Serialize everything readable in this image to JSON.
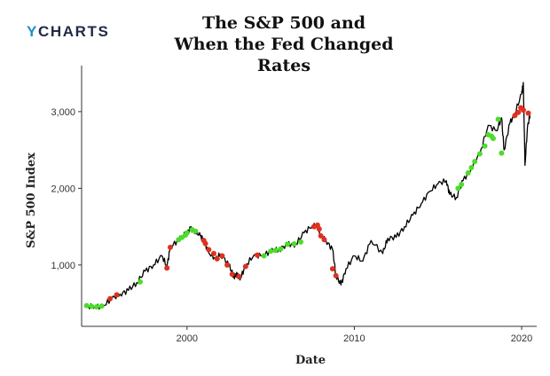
{
  "brand": {
    "logo_prefix": "Y",
    "logo_rest": "CHARTS"
  },
  "chart_data": {
    "type": "line",
    "title": "The S&P 500 and",
    "subtitle": "When the Fed Changed Rates",
    "xlabel": "Date",
    "ylabel": "S&P 500 Index",
    "xlim": [
      1993.7,
      2020.9
    ],
    "ylim": [
      200,
      3600
    ],
    "x_ticks": [
      2000,
      2010,
      2020
    ],
    "x_tick_labels": [
      "2000",
      "2010",
      "2020"
    ],
    "y_ticks": [
      1000,
      2000,
      3000
    ],
    "y_tick_labels": [
      "1,000",
      "2,000",
      "3,000"
    ],
    "grid": false,
    "legend": "none",
    "colors": {
      "line": "#000000",
      "cut": "#4cdc2b",
      "hike": "#e0301e"
    },
    "series": [
      {
        "x": [
          1994.0,
          1994.5,
          1995.0,
          1995.5,
          1996.0,
          1996.5,
          1997.0,
          1997.5,
          1998.0,
          1998.5,
          1998.8,
          1999.0,
          1999.5,
          2000.0,
          2000.2,
          2000.5,
          2000.8,
          2001.0,
          2001.3,
          2001.7,
          2002.0,
          2002.5,
          2002.8,
          2003.0,
          2003.2,
          2003.5,
          2004.0,
          2004.5,
          2005.0,
          2005.5,
          2006.0,
          2006.5,
          2007.0,
          2007.5,
          2007.8,
          2008.0,
          2008.3,
          2008.7,
          2008.9,
          2009.2,
          2009.5,
          2010.0,
          2010.5,
          2011.0,
          2011.7,
          2012.0,
          2012.5,
          2013.0,
          2013.5,
          2014.0,
          2014.5,
          2015.0,
          2015.5,
          2015.7,
          2016.1,
          2016.5,
          2017.0,
          2017.5,
          2018.0,
          2018.5,
          2018.8,
          2018.95,
          2019.3,
          2019.6,
          2020.0,
          2020.1,
          2020.2,
          2020.35,
          2020.5
        ],
        "y": [
          470,
          455,
          470,
          560,
          620,
          670,
          770,
          920,
          1000,
          1120,
          980,
          1230,
          1330,
          1420,
          1470,
          1440,
          1380,
          1320,
          1160,
          1080,
          1140,
          1000,
          850,
          870,
          830,
          990,
          1130,
          1120,
          1180,
          1200,
          1270,
          1270,
          1420,
          1520,
          1500,
          1370,
          1320,
          1200,
          870,
          740,
          950,
          1120,
          1050,
          1320,
          1150,
          1350,
          1360,
          1500,
          1650,
          1800,
          1960,
          2060,
          2100,
          1920,
          1880,
          2100,
          2270,
          2450,
          2820,
          2750,
          2920,
          2500,
          2850,
          2980,
          3230,
          3380,
          2300,
          2800,
          2950
        ]
      }
    ],
    "markers": {
      "cut": [
        [
          1994.0,
          470
        ],
        [
          1994.3,
          460
        ],
        [
          1994.6,
          455
        ],
        [
          1994.9,
          465
        ],
        [
          1997.2,
          780
        ],
        [
          1999.5,
          1330
        ],
        [
          1999.7,
          1360
        ],
        [
          1999.9,
          1390
        ],
        [
          2000.0,
          1420
        ],
        [
          2000.3,
          1460
        ],
        [
          2000.5,
          1440
        ],
        [
          2004.6,
          1120
        ],
        [
          2005.0,
          1180
        ],
        [
          2005.3,
          1190
        ],
        [
          2005.6,
          1210
        ],
        [
          2006.0,
          1270
        ],
        [
          2006.4,
          1275
        ],
        [
          2006.8,
          1300
        ],
        [
          2016.2,
          2000
        ],
        [
          2016.4,
          2050
        ],
        [
          2016.8,
          2200
        ],
        [
          2017.0,
          2270
        ],
        [
          2017.2,
          2350
        ],
        [
          2017.5,
          2450
        ],
        [
          2017.8,
          2550
        ],
        [
          2018.0,
          2700
        ],
        [
          2018.2,
          2680
        ],
        [
          2018.3,
          2650
        ],
        [
          2018.6,
          2900
        ],
        [
          2018.8,
          2460
        ]
      ],
      "hike": [
        [
          1995.4,
          560
        ],
        [
          1995.8,
          610
        ],
        [
          1998.8,
          960
        ],
        [
          1999.0,
          1230
        ],
        [
          2001.0,
          1320
        ],
        [
          2001.1,
          1280
        ],
        [
          2001.3,
          1200
        ],
        [
          2001.6,
          1150
        ],
        [
          2001.8,
          1080
        ],
        [
          2002.1,
          1120
        ],
        [
          2002.4,
          1000
        ],
        [
          2002.7,
          880
        ],
        [
          2003.1,
          850
        ],
        [
          2003.5,
          980
        ],
        [
          2004.2,
          1130
        ],
        [
          2007.6,
          1500
        ],
        [
          2007.8,
          1520
        ],
        [
          2007.9,
          1470
        ],
        [
          2008.0,
          1380
        ],
        [
          2008.2,
          1330
        ],
        [
          2008.7,
          950
        ],
        [
          2008.9,
          860
        ],
        [
          2019.6,
          2950
        ],
        [
          2019.8,
          2990
        ],
        [
          2019.95,
          3050
        ],
        [
          2020.1,
          3020
        ],
        [
          2020.4,
          2980
        ]
      ]
    }
  }
}
